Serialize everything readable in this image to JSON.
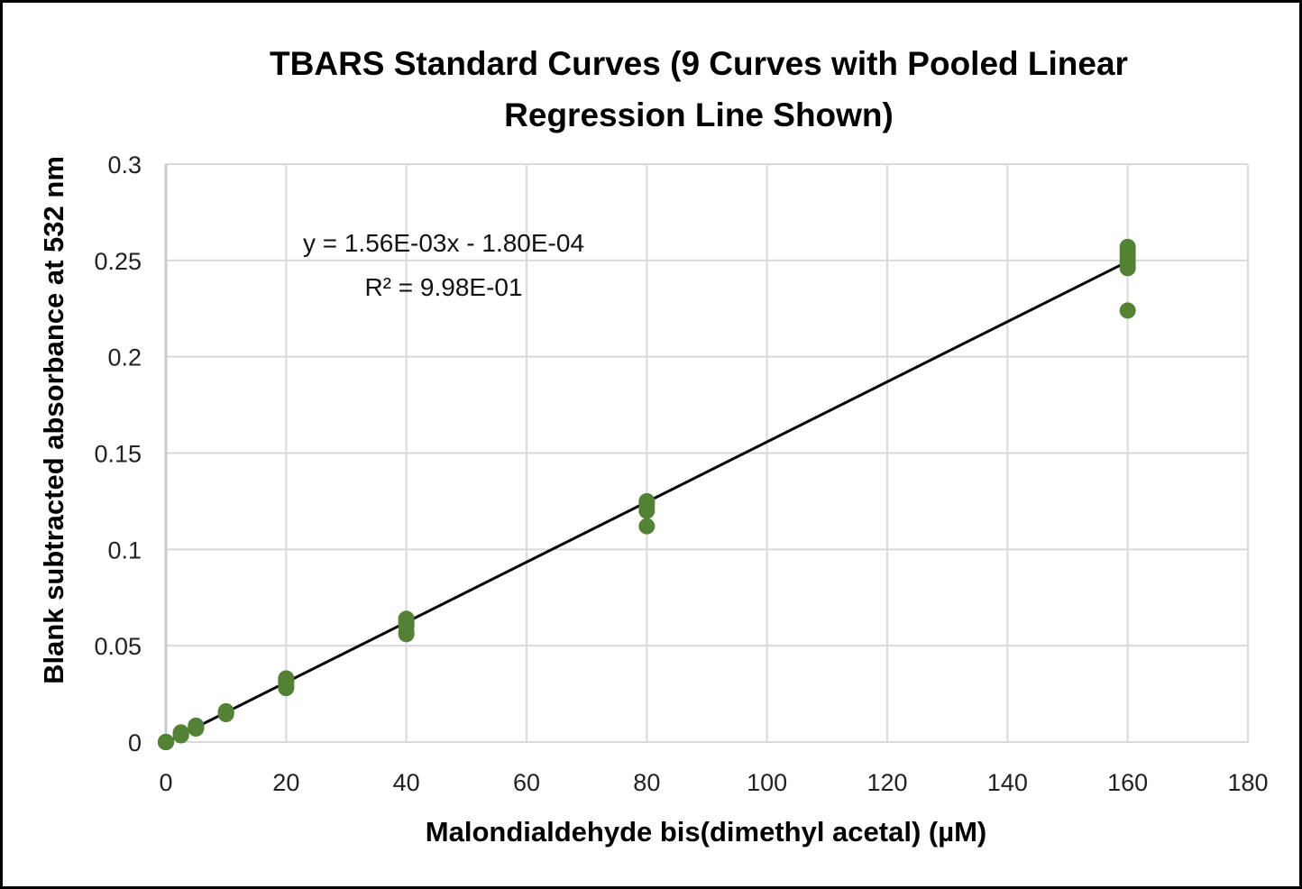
{
  "chart_data": {
    "type": "scatter",
    "title_lines": [
      "TBARS Standard Curves (9 Curves with Pooled Linear",
      "Regression Line Shown)"
    ],
    "xlabel": "Malondialdehyde bis(dimethyl acetal) (µM)",
    "ylabel": "Blank subtracted absorbance at 532 nm",
    "xlim": [
      0,
      180
    ],
    "ylim": [
      0,
      0.3
    ],
    "x_ticks": [
      0,
      20,
      40,
      60,
      80,
      100,
      120,
      140,
      160,
      180
    ],
    "y_ticks": [
      0,
      0.05,
      0.1,
      0.15,
      0.2,
      0.25,
      0.3
    ],
    "grid": true,
    "marker_color": "#548235",
    "line_color": "#000000",
    "gridline_color": "#d9d9d9",
    "series": [
      {
        "name": "Standards",
        "points": [
          [
            0,
            0
          ],
          [
            0,
            0
          ],
          [
            0,
            0
          ],
          [
            0,
            0
          ],
          [
            0,
            0
          ],
          [
            0,
            0
          ],
          [
            0,
            0
          ],
          [
            0,
            0
          ],
          [
            0,
            0
          ],
          [
            2.5,
            0.004
          ],
          [
            2.5,
            0.0035
          ],
          [
            2.5,
            0.005
          ],
          [
            2.5,
            0.0045
          ],
          [
            5,
            0.008
          ],
          [
            5,
            0.007
          ],
          [
            5,
            0.0085
          ],
          [
            5,
            0.0075
          ],
          [
            10,
            0.016
          ],
          [
            10,
            0.015
          ],
          [
            10,
            0.0145
          ],
          [
            10,
            0.0155
          ],
          [
            20,
            0.033
          ],
          [
            20,
            0.031
          ],
          [
            20,
            0.029
          ],
          [
            20,
            0.028
          ],
          [
            20,
            0.0315
          ],
          [
            40,
            0.064
          ],
          [
            40,
            0.062
          ],
          [
            40,
            0.06
          ],
          [
            40,
            0.057
          ],
          [
            40,
            0.056
          ],
          [
            40,
            0.063
          ],
          [
            80,
            0.125
          ],
          [
            80,
            0.122
          ],
          [
            80,
            0.12
          ],
          [
            80,
            0.112
          ],
          [
            80,
            0.124
          ],
          [
            160,
            0.257
          ],
          [
            160,
            0.255
          ],
          [
            160,
            0.253
          ],
          [
            160,
            0.251
          ],
          [
            160,
            0.249
          ],
          [
            160,
            0.247
          ],
          [
            160,
            0.246
          ],
          [
            160,
            0.224
          ]
        ]
      }
    ],
    "trendline": {
      "slope": 0.00156,
      "intercept": -0.00018,
      "x_range": [
        0,
        160
      ],
      "equation": "y = 1.56E-03x - 1.80E-04",
      "r_squared": "R² = 9.98E-01"
    }
  }
}
